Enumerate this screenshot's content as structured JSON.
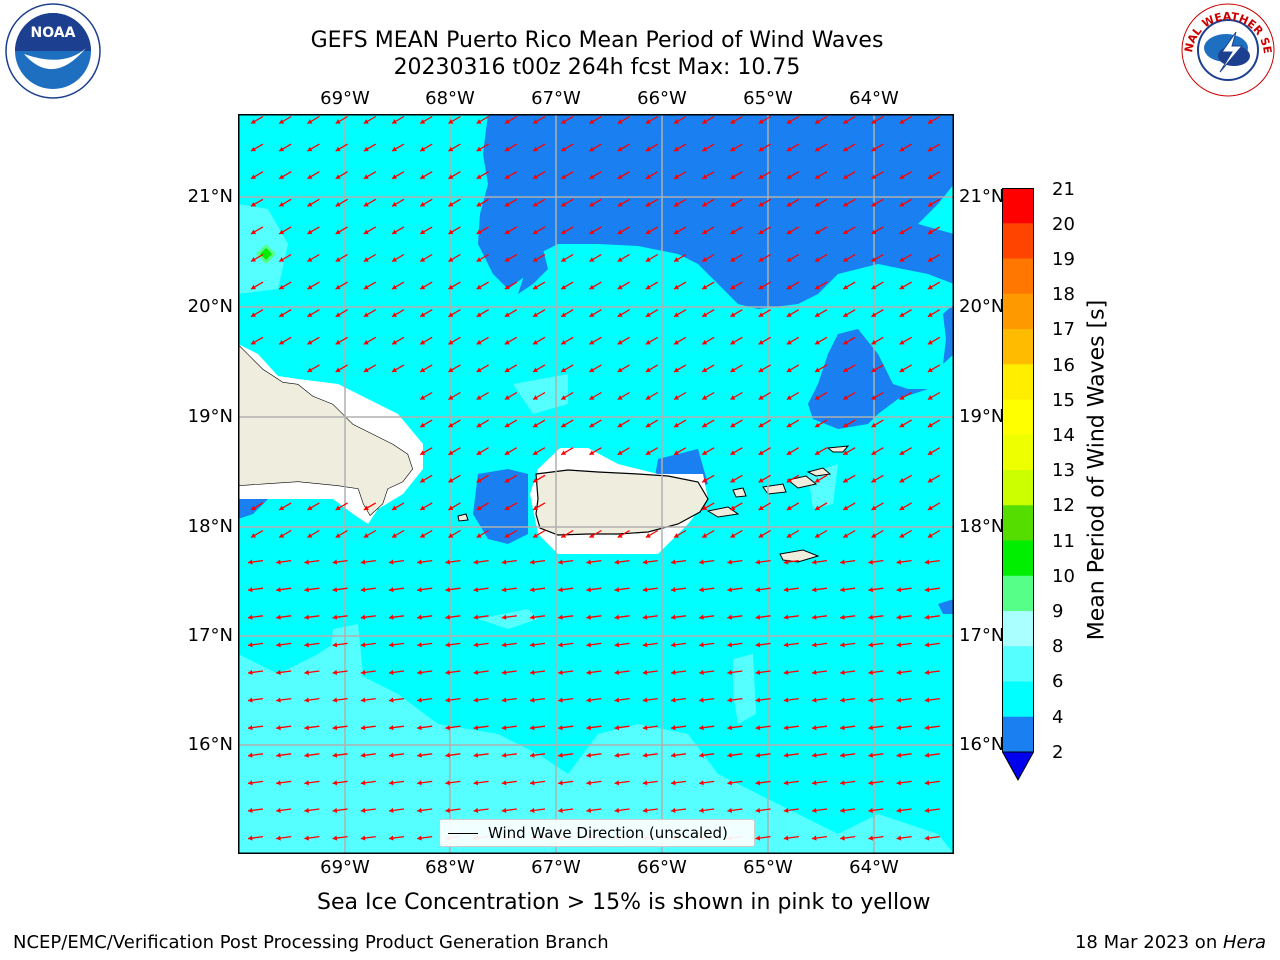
{
  "title": {
    "line1": "GEFS MEAN Puerto Rico Mean Period of Wind Waves",
    "line2": "20230316 t00z 264h fcst   Max: 10.75"
  },
  "axes": {
    "lon_labels": [
      "69°W",
      "68°W",
      "67°W",
      "66°W",
      "65°W",
      "64°W"
    ],
    "lat_labels": [
      "21°N",
      "20°N",
      "19°N",
      "18°N",
      "17°N",
      "16°N"
    ]
  },
  "colorbar": {
    "label": "Mean Period of Wind Waves [s]",
    "ticks": [
      "21",
      "20",
      "19",
      "18",
      "17",
      "16",
      "15",
      "14",
      "13",
      "12",
      "11",
      "10",
      "9",
      "8",
      "6",
      "4",
      "2"
    ],
    "colors": {
      "c2_4": "#1a7ff0",
      "c4_6": "#00ffff",
      "c6_8": "#55ffff",
      "c8_9": "#aaffff",
      "c9_10": "#55ff88",
      "c10_11": "#00ee00",
      "c11_12": "#55dd00",
      "c12_13": "#ccff00",
      "c13_14": "#eeff00",
      "c14_15": "#ffff00",
      "c15_16": "#ffee00",
      "c16_17": "#ffbb00",
      "c17_18": "#ff9900",
      "c18_19": "#ff7700",
      "c19_20": "#ff4400",
      "c20_21": "#ff0000",
      "under": "#0000ee"
    }
  },
  "legend": {
    "label": "Wind Wave Direction (unscaled)"
  },
  "map_colors": {
    "ocean": "#00ffff",
    "deep_blue": "#1a7ff0",
    "light_cyan": "#55ffff",
    "land": "#efedde",
    "arrow": "#ff0000",
    "grid": "#b0b0b0"
  },
  "subtitle": "Sea Ice Concentration > 15% is shown in pink to yellow",
  "footer": {
    "left": "NCEP/EMC/Verification Post Processing Product Generation Branch",
    "right_date": "18 Mar 2023 on ",
    "right_host": "Hera"
  },
  "logos": {
    "noaa": "NOAA",
    "nws": "NATIONAL WEATHER SERVICE"
  }
}
